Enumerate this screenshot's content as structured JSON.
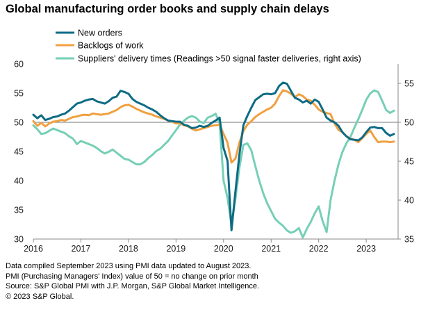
{
  "title": "Global manufacturing order books and supply chain delays",
  "notes": [
    "Data compiled September 2023 using PMI data updated to August 2023.",
    "PMI (Purchasing Managers' Index) value of  50 = no change on prior month",
    "Source: S&P Global  PMI with J.P. Morgan, S&P Global Market Intelligence.",
    "© 2023 S&P Global."
  ],
  "chart_data": {
    "type": "line",
    "title": "Global manufacturing order books and supply chain delays",
    "x_start": "2016-01",
    "x_labels": [
      "2016",
      "2017",
      "2018",
      "2019",
      "2020",
      "2021",
      "2022",
      "2023"
    ],
    "xlim": [
      2016.0,
      2023.67
    ],
    "ylim_left": [
      30,
      60
    ],
    "yticks_left": [
      "30",
      "35",
      "40",
      "45",
      "50",
      "55",
      "60"
    ],
    "ylim_right": [
      35,
      57.5
    ],
    "yticks_right": [
      "35",
      "40",
      "45",
      "50",
      "55"
    ],
    "reference_line": 50,
    "legend_position": "top",
    "series": [
      {
        "name": "New orders",
        "axis": "left",
        "color": "#0e6b84",
        "values": [
          51.3,
          50.7,
          51.2,
          50.4,
          50.6,
          50.9,
          51.0,
          51.3,
          51.5,
          52.0,
          52.6,
          53.2,
          53.4,
          53.7,
          53.9,
          54.0,
          53.6,
          53.4,
          53.2,
          53.6,
          54.2,
          54.4,
          55.4,
          55.2,
          54.9,
          54.0,
          53.5,
          53.2,
          52.9,
          52.5,
          52.2,
          51.8,
          51.2,
          50.7,
          50.3,
          50.2,
          50.1,
          50.1,
          49.6,
          49.4,
          49.0,
          49.1,
          49.4,
          49.2,
          49.4,
          49.9,
          50.3,
          50.8,
          45.6,
          43.4,
          31.5,
          38.2,
          44.5,
          49.5,
          51.1,
          52.5,
          53.8,
          54.3,
          54.8,
          54.9,
          54.8,
          55.0,
          56.2,
          56.8,
          56.6,
          55.4,
          54.2,
          53.9,
          53.4,
          53.7,
          53.2,
          53.9,
          53.5,
          52.2,
          50.8,
          50.3,
          50.0,
          49.4,
          48.3,
          47.6,
          47.1,
          47.0,
          46.9,
          47.4,
          48.3,
          49.1,
          49.2,
          49.0,
          49.0,
          48.2,
          47.7,
          48.0
        ]
      },
      {
        "name": "Backlogs of work",
        "axis": "left",
        "color": "#f0a040",
        "values": [
          50.2,
          49.4,
          49.9,
          49.3,
          49.8,
          50.1,
          50.2,
          50.4,
          50.3,
          50.6,
          50.9,
          51.0,
          51.2,
          51.3,
          51.2,
          51.5,
          51.4,
          51.3,
          51.4,
          51.5,
          51.8,
          52.1,
          52.6,
          52.9,
          53.0,
          52.7,
          52.3,
          52.0,
          51.7,
          51.5,
          51.3,
          51.0,
          50.8,
          50.6,
          50.3,
          50.1,
          49.8,
          49.8,
          49.5,
          49.3,
          48.9,
          48.6,
          48.8,
          49.0,
          49.2,
          49.4,
          49.5,
          49.6,
          48.0,
          46.5,
          43.1,
          43.8,
          46.5,
          48.5,
          49.6,
          50.2,
          50.9,
          51.4,
          51.8,
          52.2,
          52.5,
          53.2,
          54.5,
          55.5,
          55.3,
          54.9,
          54.3,
          54.8,
          54.5,
          53.9,
          53.7,
          53.0,
          52.2,
          51.8,
          51.6,
          51.4,
          49.8,
          48.7,
          48.3,
          47.6,
          47.2,
          47.0,
          46.6,
          47.3,
          48.0,
          48.6,
          47.5,
          46.6,
          46.7,
          46.7,
          46.6,
          46.7
        ]
      },
      {
        "name": "Suppliers' delivery times (Readings >50 signal faster deliveries, right axis)",
        "axis": "right",
        "color": "#76cfb6",
        "values": [
          49.6,
          49.1,
          48.5,
          48.6,
          48.9,
          49.2,
          49.0,
          48.8,
          48.6,
          48.2,
          47.9,
          47.2,
          47.6,
          47.4,
          47.2,
          47.0,
          46.7,
          46.3,
          46.0,
          46.2,
          46.5,
          46.1,
          45.7,
          45.3,
          45.2,
          44.9,
          44.6,
          44.6,
          44.9,
          45.4,
          45.8,
          46.3,
          46.6,
          47.1,
          47.6,
          48.3,
          49.0,
          49.7,
          50.2,
          50.6,
          50.8,
          50.6,
          50.1,
          49.9,
          50.6,
          50.8,
          51.1,
          49.9,
          42.5,
          40.3,
          36.8,
          40.2,
          44.2,
          47.1,
          47.3,
          46.4,
          44.4,
          42.5,
          40.9,
          39.6,
          38.6,
          37.6,
          37.1,
          36.7,
          36.1,
          35.8,
          36.0,
          36.4,
          35.2,
          36.3,
          37.2,
          38.3,
          39.2,
          37.3,
          35.9,
          40.0,
          42.5,
          44.6,
          46.2,
          47.3,
          48.1,
          49.3,
          50.4,
          51.6,
          52.9,
          53.7,
          54.1,
          53.9,
          52.8,
          51.6,
          51.2,
          51.5
        ]
      }
    ]
  }
}
